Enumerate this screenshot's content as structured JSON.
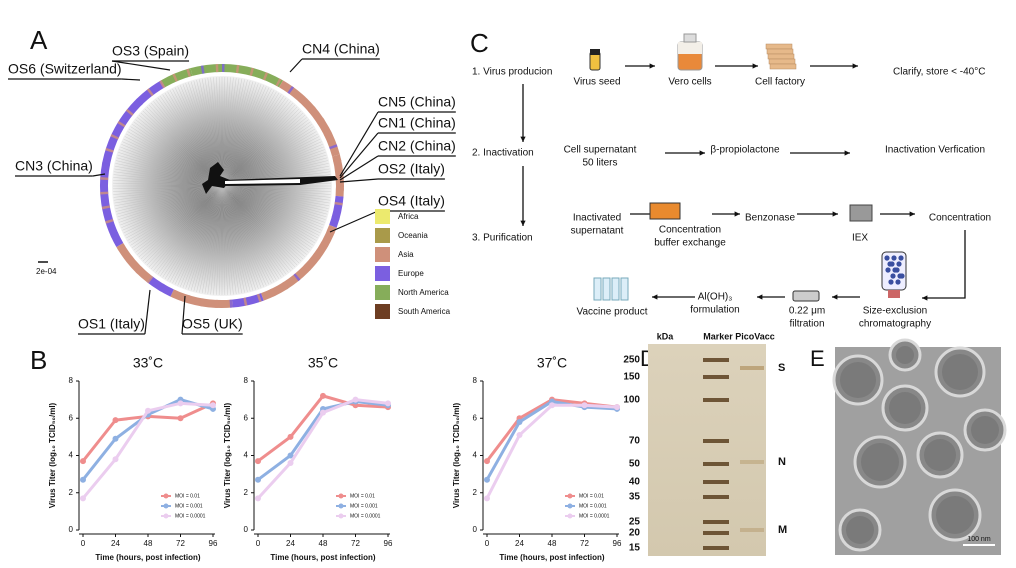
{
  "panel_a": {
    "label": "A",
    "strains": [
      "OS3 (Spain)",
      "OS6 (Switzerland)",
      "CN4 (China)",
      "CN5 (China)",
      "CN1 (China)",
      "CN2 (China)",
      "OS2 (Italy)",
      "OS4 (Italy)",
      "CN3 (China)",
      "OS1 (Italy)",
      "OS5 (UK)"
    ],
    "scale": "2e-04",
    "legend": [
      {
        "name": "Africa",
        "color": "#ecea6e"
      },
      {
        "name": "Oceania",
        "color": "#a99a4a"
      },
      {
        "name": "Asia",
        "color": "#cf907a"
      },
      {
        "name": "Europe",
        "color": "#7b5fe0"
      },
      {
        "name": "North America",
        "color": "#86ad5a"
      },
      {
        "name": "South America",
        "color": "#6d3d22"
      }
    ]
  },
  "panel_b": {
    "label": "B"
  },
  "chart_data": [
    {
      "type": "line",
      "title": "33˚C",
      "ylabel": "Virus Titer (log₁₀ TCID₅₀/ml)",
      "xlabel": "Time (hours, post infection)",
      "x": [
        0,
        24,
        48,
        72,
        96
      ],
      "xlim": [
        0,
        96
      ],
      "xticks": [
        0,
        24,
        48,
        72,
        96
      ],
      "ylim": [
        0,
        8
      ],
      "yticks": [
        0,
        2,
        4,
        6,
        8
      ],
      "legend": "lower right",
      "series": [
        {
          "name": "MOI = 0.01",
          "color": "#ef8d8d",
          "values": [
            3.7,
            5.9,
            6.1,
            6.0,
            6.8
          ]
        },
        {
          "name": "MOI = 0.001",
          "color": "#8eb0e2",
          "values": [
            2.7,
            4.9,
            6.2,
            7.0,
            6.5
          ]
        },
        {
          "name": "MOI = 0.0001",
          "color": "#ebcdef",
          "values": [
            1.7,
            3.8,
            6.4,
            6.8,
            6.7
          ]
        }
      ]
    },
    {
      "type": "line",
      "title": "35˚C",
      "ylabel": "Virus Titer (log₁₀ TCID₅₀/ml)",
      "xlabel": "Time (hours, post infection)",
      "x": [
        0,
        24,
        48,
        72,
        96
      ],
      "xlim": [
        0,
        96
      ],
      "xticks": [
        0,
        24,
        48,
        72,
        96
      ],
      "ylim": [
        0,
        8
      ],
      "yticks": [
        0,
        2,
        4,
        6,
        8
      ],
      "legend": "lower right",
      "series": [
        {
          "name": "MOI = 0.01",
          "color": "#ef8d8d",
          "values": [
            3.7,
            5.0,
            7.2,
            6.7,
            6.6
          ]
        },
        {
          "name": "MOI = 0.001",
          "color": "#8eb0e2",
          "values": [
            2.7,
            4.0,
            6.5,
            6.9,
            6.7
          ]
        },
        {
          "name": "MOI = 0.0001",
          "color": "#ebcdef",
          "values": [
            1.7,
            3.6,
            6.3,
            7.0,
            6.8
          ]
        }
      ]
    },
    {
      "type": "line",
      "title": "37˚C",
      "ylabel": "Virus Titer (log₁₀ TCID₅₀/ml)",
      "xlabel": "Time (hours, post infection)",
      "x": [
        0,
        24,
        48,
        72,
        96
      ],
      "xlim": [
        0,
        96
      ],
      "xticks": [
        0,
        24,
        48,
        72,
        96
      ],
      "ylim": [
        0,
        8
      ],
      "yticks": [
        0,
        2,
        4,
        6,
        8
      ],
      "legend": "lower right",
      "series": [
        {
          "name": "MOI = 0.01",
          "color": "#ef8d8d",
          "values": [
            3.7,
            6.0,
            7.0,
            6.8,
            6.6
          ]
        },
        {
          "name": "MOI = 0.001",
          "color": "#8eb0e2",
          "values": [
            2.7,
            5.8,
            6.9,
            6.6,
            6.5
          ]
        },
        {
          "name": "MOI = 0.0001",
          "color": "#ebcdef",
          "values": [
            1.7,
            5.1,
            6.7,
            6.7,
            6.6
          ]
        }
      ]
    }
  ],
  "panel_c": {
    "label": "C",
    "steps": [
      "1. Virus producion",
      "2. Inactivation",
      "3. Purification"
    ],
    "texts": [
      "Virus seed",
      "Vero cells",
      "Cell factory",
      "Clarify, store < -40°C",
      "Cell supernatant",
      "50 liters",
      "β-propiolactone",
      "Inactivation Verfication",
      "Inactivated",
      "supernatant",
      "Concentration",
      "buffer exchange",
      "Benzonase",
      "IEX",
      "Concentration",
      "Size-exclusion",
      "chromatography",
      "0.22 μm",
      "filtration",
      "Al(OH)₃",
      "formulation",
      "Vaccine product"
    ]
  },
  "panel_d": {
    "label": "D",
    "headers": [
      "kDa",
      "Marker",
      "PicoVacc"
    ],
    "markers": [
      "250",
      "150",
      "100",
      "70",
      "50",
      "40",
      "35",
      "25",
      "20",
      "15"
    ],
    "bands": [
      "S",
      "N",
      "M"
    ]
  },
  "panel_e": {
    "label": "E",
    "scale": "100 nm"
  }
}
